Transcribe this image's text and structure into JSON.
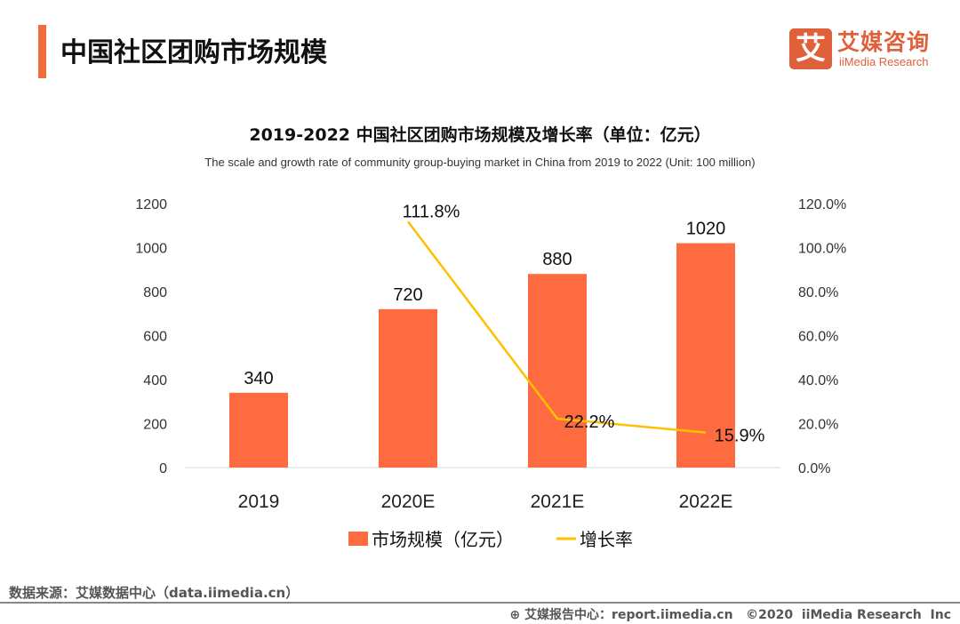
{
  "header": {
    "title": "中国社区团购市场规模",
    "accent_color": "#F26B3A"
  },
  "logo": {
    "mark": "艾",
    "name_cn": "艾媒咨询",
    "name_en": "iiMedia Research"
  },
  "chart_data": {
    "type": "bar+line",
    "title": "2019-2022 中国社区团购市场规模及增长率（单位：亿元）",
    "subtitle": "The scale and growth rate of community group-buying market in China from 2019 to 2022 (Unit: 100 million)",
    "categories": [
      "2019",
      "2020E",
      "2021E",
      "2022E"
    ],
    "y_left": {
      "range": [
        0,
        1200
      ],
      "ticks": [
        "0",
        "200",
        "400",
        "600",
        "800",
        "1000",
        "1200"
      ]
    },
    "y_right": {
      "range": [
        0,
        120
      ],
      "ticks": [
        "0.0%",
        "20.0%",
        "40.0%",
        "60.0%",
        "80.0%",
        "100.0%",
        "120.0%"
      ]
    },
    "series": [
      {
        "name": "市场规模（亿元）",
        "type": "bar",
        "axis": "left",
        "color": "#FF6B40",
        "values": [
          340,
          720,
          880,
          1020
        ],
        "labels": [
          "340",
          "720",
          "880",
          "1020"
        ]
      },
      {
        "name": "增长率",
        "type": "line",
        "axis": "right",
        "color": "#FFC000",
        "values": [
          null,
          111.8,
          22.2,
          15.9
        ],
        "labels": [
          "",
          "111.8%",
          "22.2%",
          "15.9%"
        ]
      }
    ],
    "legend": "bottom",
    "grid": false
  },
  "footer": {
    "source": "数据来源：艾媒数据中心（data.iimedia.cn）",
    "copyright": "艾媒报告中心：report.iimedia.cn   ©2020  iiMedia Research  Inc",
    "icon": "globe-icon"
  }
}
